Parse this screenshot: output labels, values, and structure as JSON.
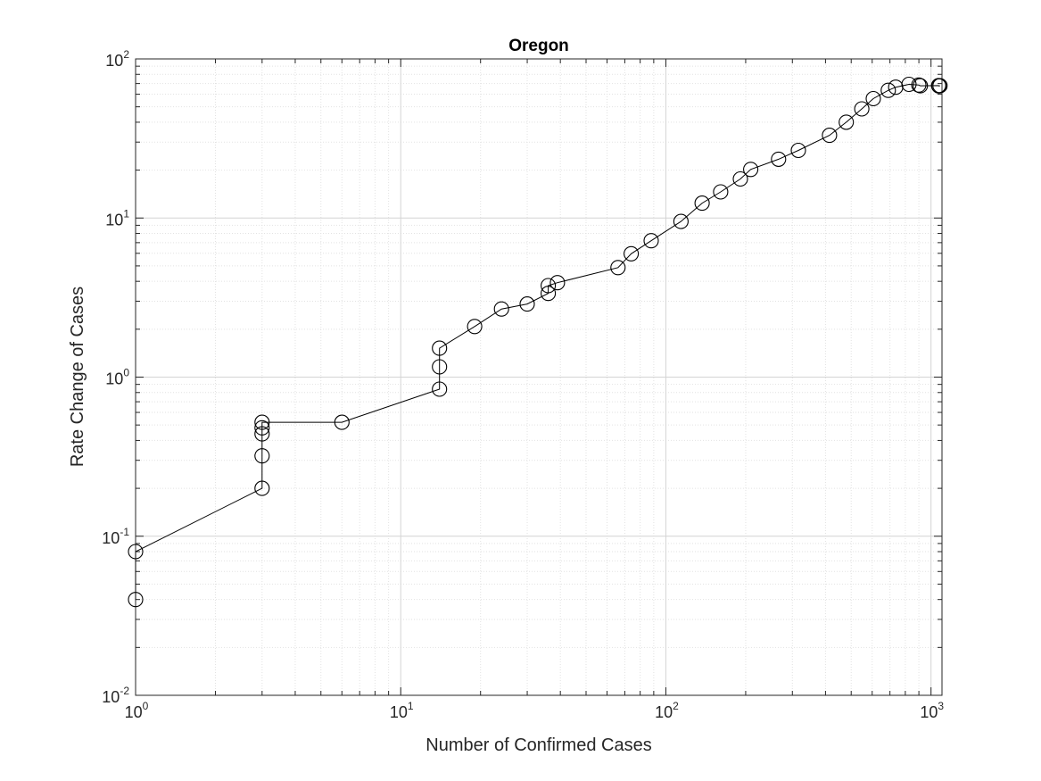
{
  "chart_data": {
    "type": "line",
    "title": "Oregon",
    "xlabel": "Number of Confirmed Cases",
    "ylabel": "Rate Change of Cases",
    "xscale": "log",
    "yscale": "log",
    "xlim": [
      1,
      1100
    ],
    "ylim": [
      0.01,
      100
    ],
    "grid": true,
    "minor_grid": true,
    "legend": "none",
    "marker": "circle",
    "line_color": "#000000",
    "x_ticks": [
      {
        "base": "10",
        "exp": "0"
      },
      {
        "base": "10",
        "exp": "1"
      },
      {
        "base": "10",
        "exp": "2"
      },
      {
        "base": "10",
        "exp": "3"
      }
    ],
    "y_ticks": [
      {
        "base": "10",
        "exp": "-2"
      },
      {
        "base": "10",
        "exp": "-1"
      },
      {
        "base": "10",
        "exp": "0"
      },
      {
        "base": "10",
        "exp": "1"
      },
      {
        "base": "10",
        "exp": "2"
      }
    ],
    "x": [
      1,
      1,
      3,
      3,
      3,
      3,
      3,
      6,
      14,
      14,
      14,
      19,
      24,
      30,
      36,
      36,
      39,
      66,
      74,
      88,
      114,
      137,
      161,
      191,
      209,
      266,
      316,
      414,
      479,
      548,
      606,
      690,
      736,
      826,
      899,
      911,
      1068,
      1071,
      1081
    ],
    "y": [
      0.04,
      0.08,
      0.2,
      0.32,
      0.44,
      0.48,
      0.52,
      0.52,
      0.84,
      1.16,
      1.52,
      2.08,
      2.68,
      2.88,
      3.36,
      3.76,
      3.92,
      4.88,
      5.96,
      7.2,
      9.52,
      12.4,
      14.6,
      17.6,
      20.2,
      23.4,
      26.6,
      33.1,
      40.0,
      48.5,
      56.3,
      63.5,
      66.4,
      69.2,
      68.5,
      67.8,
      68.0,
      67.6,
      67.9
    ]
  }
}
